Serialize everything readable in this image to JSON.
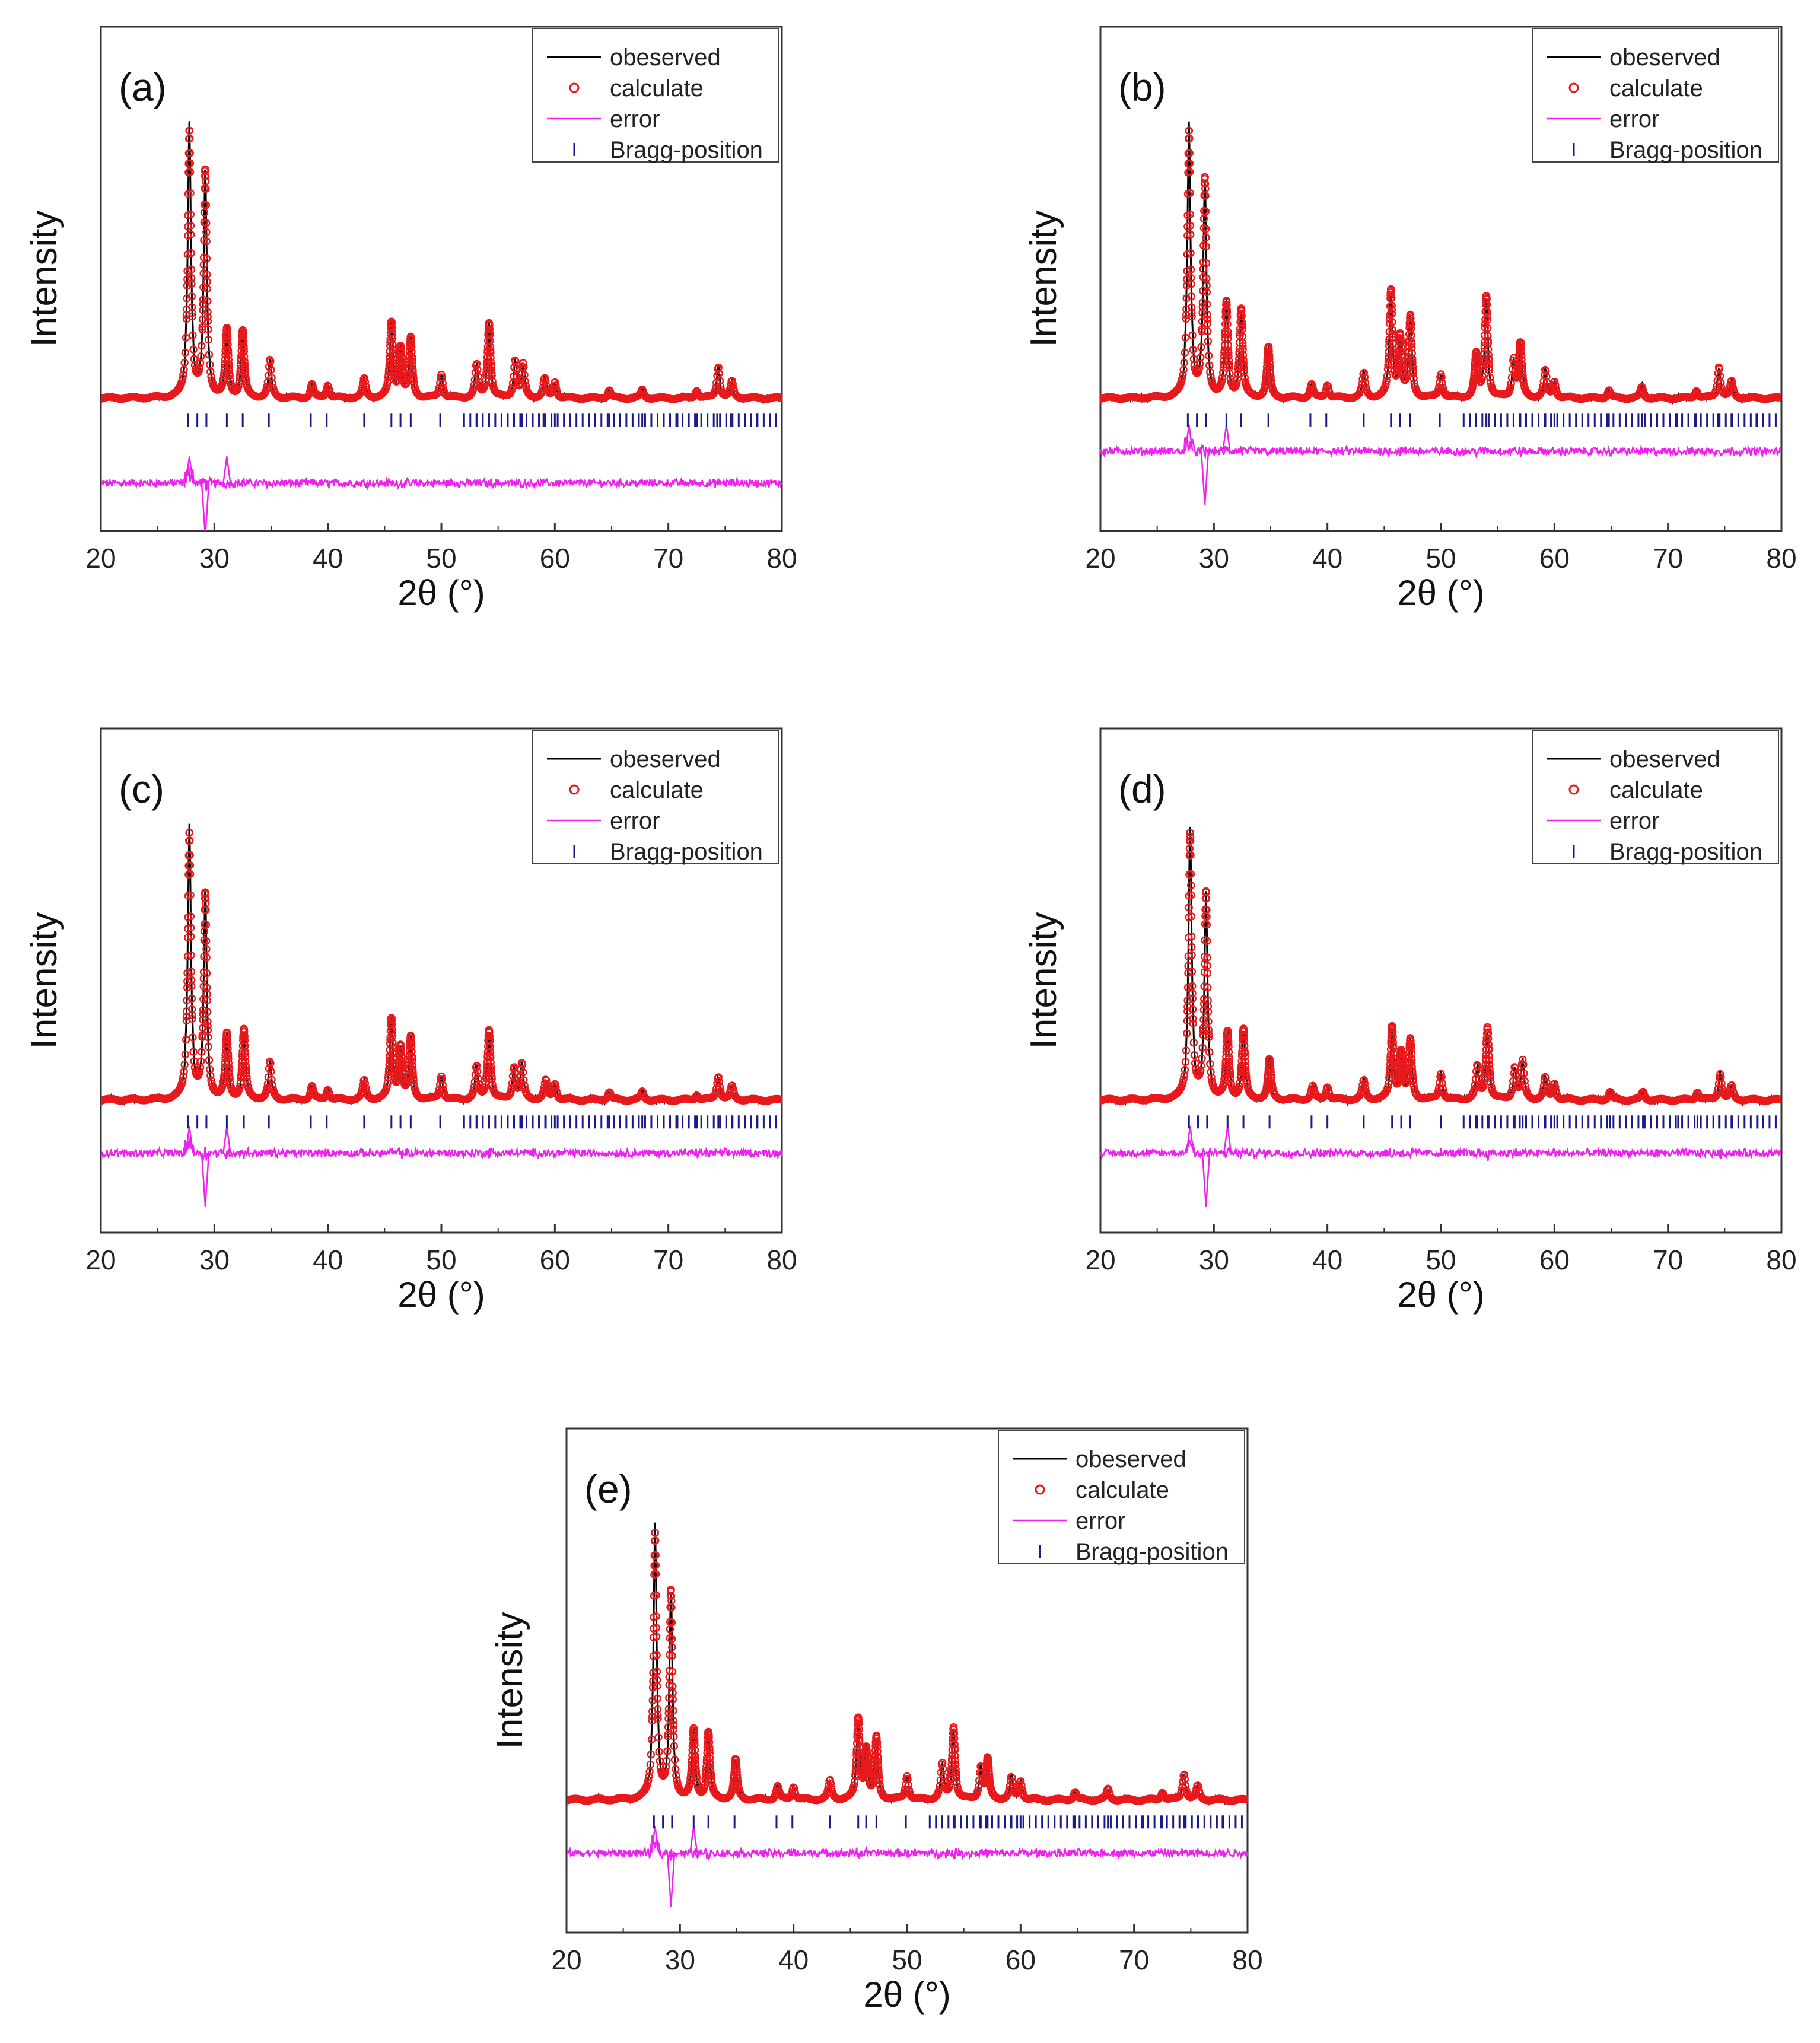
{
  "figure": {
    "x_axis_label": "2θ (°)",
    "y_axis_label": "Intensity",
    "legend": [
      "obeserved",
      "calculate",
      "error",
      "Bragg-position"
    ],
    "colors": {
      "observed": "#000000",
      "calculated": "#e8191c",
      "error": "#ee22ee",
      "bragg": "#1a1a8c"
    }
  },
  "chart_data": [
    {
      "panel_label": "(a)",
      "type": "line",
      "xlabel": "2θ (°)",
      "ylabel": "Intensity",
      "xlim": [
        20,
        80
      ],
      "xticks": [
        20,
        30,
        40,
        50,
        60,
        70,
        80
      ],
      "ylim": [
        -0.5,
        1.4
      ],
      "legend": [
        "obeserved",
        "calculate",
        "error",
        "Bragg-position"
      ],
      "baseline": 0.0,
      "error_offset": -0.32,
      "peaks": [
        [
          27.8,
          1.0
        ],
        [
          29.2,
          0.85
        ],
        [
          31.1,
          0.25
        ],
        [
          32.5,
          0.25
        ],
        [
          34.9,
          0.14
        ],
        [
          38.6,
          0.05
        ],
        [
          40.0,
          0.05
        ],
        [
          43.2,
          0.07
        ],
        [
          45.6,
          0.28
        ],
        [
          46.4,
          0.18
        ],
        [
          47.3,
          0.22
        ],
        [
          50.0,
          0.09
        ],
        [
          53.1,
          0.12
        ],
        [
          54.2,
          0.28
        ],
        [
          56.5,
          0.14
        ],
        [
          57.2,
          0.12
        ],
        [
          59.1,
          0.07
        ],
        [
          60.0,
          0.06
        ],
        [
          64.8,
          0.03
        ],
        [
          67.7,
          0.03
        ],
        [
          72.5,
          0.03
        ],
        [
          74.4,
          0.12
        ],
        [
          75.6,
          0.06
        ]
      ],
      "bragg_positions": [
        27.7,
        28.5,
        29.3,
        31.1,
        32.5,
        34.8,
        38.5,
        39.9,
        43.2,
        45.6,
        46.4,
        47.3,
        49.9,
        53.1,
        54.2,
        56.4,
        57.1,
        59.0,
        60.0,
        64.8,
        67.7,
        70.8,
        72.5,
        74.3,
        75.5,
        77.8
      ]
    },
    {
      "panel_label": "(b)",
      "type": "line",
      "xlabel": "2θ (°)",
      "ylabel": "Intensity",
      "xlim": [
        20,
        80
      ],
      "xticks": [
        20,
        30,
        40,
        50,
        60,
        70,
        80
      ],
      "ylim": [
        -0.5,
        1.4
      ],
      "legend": [
        "obeserved",
        "calculate",
        "error",
        "Bragg-position"
      ],
      "baseline": 0.0,
      "error_offset": -0.2,
      "peaks": [
        [
          27.8,
          1.0
        ],
        [
          29.2,
          0.82
        ],
        [
          31.1,
          0.35
        ],
        [
          32.4,
          0.33
        ],
        [
          34.8,
          0.19
        ],
        [
          38.6,
          0.05
        ],
        [
          40.0,
          0.05
        ],
        [
          43.2,
          0.09
        ],
        [
          45.6,
          0.4
        ],
        [
          46.4,
          0.22
        ],
        [
          47.3,
          0.3
        ],
        [
          50.0,
          0.09
        ],
        [
          53.1,
          0.16
        ],
        [
          54.0,
          0.38
        ],
        [
          56.4,
          0.14
        ],
        [
          57.0,
          0.2
        ],
        [
          59.2,
          0.1
        ],
        [
          60.0,
          0.06
        ],
        [
          64.8,
          0.03
        ],
        [
          67.7,
          0.04
        ],
        [
          72.5,
          0.03
        ],
        [
          74.5,
          0.12
        ],
        [
          75.6,
          0.06
        ]
      ],
      "bragg_positions": [
        27.7,
        28.5,
        29.3,
        31.1,
        32.4,
        34.8,
        38.5,
        39.9,
        43.2,
        45.6,
        46.4,
        47.3,
        49.9,
        53.1,
        54.0,
        56.4,
        57.0,
        59.2,
        60.0,
        64.8,
        67.7,
        70.8,
        72.5,
        74.4,
        75.6,
        77.8
      ]
    },
    {
      "panel_label": "(c)",
      "type": "line",
      "xlabel": "2θ (°)",
      "ylabel": "Intensity",
      "xlim": [
        20,
        80
      ],
      "xticks": [
        20,
        30,
        40,
        50,
        60,
        70,
        80
      ],
      "ylim": [
        -0.5,
        1.4
      ],
      "legend": [
        "obeserved",
        "calculate",
        "error",
        "Bragg-position"
      ],
      "baseline": 0.0,
      "error_offset": -0.2,
      "peaks": [
        [
          27.8,
          1.0
        ],
        [
          29.2,
          0.77
        ],
        [
          31.1,
          0.24
        ],
        [
          32.6,
          0.26
        ],
        [
          34.9,
          0.14
        ],
        [
          38.6,
          0.05
        ],
        [
          40.0,
          0.04
        ],
        [
          43.2,
          0.07
        ],
        [
          45.6,
          0.3
        ],
        [
          46.4,
          0.19
        ],
        [
          47.3,
          0.23
        ],
        [
          50.0,
          0.09
        ],
        [
          53.1,
          0.12
        ],
        [
          54.2,
          0.26
        ],
        [
          56.4,
          0.12
        ],
        [
          57.1,
          0.13
        ],
        [
          59.2,
          0.07
        ],
        [
          60.0,
          0.06
        ],
        [
          64.8,
          0.03
        ],
        [
          67.7,
          0.03
        ],
        [
          72.5,
          0.02
        ],
        [
          74.4,
          0.09
        ],
        [
          75.6,
          0.05
        ]
      ],
      "bragg_positions": [
        27.7,
        28.5,
        29.3,
        31.1,
        32.6,
        34.8,
        38.5,
        39.9,
        43.2,
        45.6,
        46.4,
        47.3,
        49.9,
        53.1,
        54.2,
        56.4,
        57.1,
        59.2,
        60.0,
        64.8,
        67.7,
        70.8,
        72.5,
        74.4,
        75.6,
        77.8
      ]
    },
    {
      "panel_label": "(d)",
      "type": "line",
      "xlabel": "2θ (°)",
      "ylabel": "Intensity",
      "xlim": [
        20,
        80
      ],
      "xticks": [
        20,
        30,
        40,
        50,
        60,
        70,
        80
      ],
      "ylim": [
        -0.5,
        1.4
      ],
      "legend": [
        "obeserved",
        "calculate",
        "error",
        "Bragg-position"
      ],
      "baseline": 0.0,
      "error_offset": -0.2,
      "peaks": [
        [
          27.9,
          1.0
        ],
        [
          29.3,
          0.77
        ],
        [
          31.2,
          0.25
        ],
        [
          32.6,
          0.26
        ],
        [
          34.9,
          0.15
        ],
        [
          38.7,
          0.05
        ],
        [
          40.0,
          0.05
        ],
        [
          43.2,
          0.07
        ],
        [
          45.7,
          0.27
        ],
        [
          46.5,
          0.17
        ],
        [
          47.3,
          0.22
        ],
        [
          50.0,
          0.1
        ],
        [
          53.2,
          0.12
        ],
        [
          54.1,
          0.27
        ],
        [
          56.5,
          0.12
        ],
        [
          57.2,
          0.14
        ],
        [
          59.2,
          0.08
        ],
        [
          60.0,
          0.06
        ],
        [
          64.9,
          0.03
        ],
        [
          67.8,
          0.03
        ],
        [
          72.6,
          0.03
        ],
        [
          74.6,
          0.1
        ],
        [
          75.6,
          0.05
        ]
      ],
      "bragg_positions": [
        27.8,
        28.6,
        29.4,
        31.2,
        32.6,
        34.9,
        38.6,
        40.0,
        43.2,
        45.7,
        46.5,
        47.3,
        50.0,
        53.2,
        54.1,
        56.5,
        57.2,
        59.2,
        60.0,
        64.9,
        67.8,
        70.9,
        72.6,
        74.5,
        75.6,
        77.9
      ]
    },
    {
      "panel_label": "(e)",
      "type": "line",
      "xlabel": "2θ (°)",
      "ylabel": "Intensity",
      "xlim": [
        20,
        80
      ],
      "xticks": [
        20,
        30,
        40,
        50,
        60,
        70,
        80
      ],
      "ylim": [
        -0.5,
        1.4
      ],
      "legend": [
        "obeserved",
        "calculate",
        "error",
        "Bragg-position"
      ],
      "baseline": 0.0,
      "error_offset": -0.2,
      "peaks": [
        [
          27.8,
          1.0
        ],
        [
          29.2,
          0.78
        ],
        [
          31.2,
          0.26
        ],
        [
          32.5,
          0.25
        ],
        [
          34.9,
          0.15
        ],
        [
          38.6,
          0.05
        ],
        [
          40.0,
          0.05
        ],
        [
          43.2,
          0.07
        ],
        [
          45.7,
          0.3
        ],
        [
          46.4,
          0.18
        ],
        [
          47.3,
          0.23
        ],
        [
          50.0,
          0.09
        ],
        [
          53.1,
          0.13
        ],
        [
          54.1,
          0.27
        ],
        [
          56.5,
          0.12
        ],
        [
          57.1,
          0.15
        ],
        [
          59.2,
          0.08
        ],
        [
          60.0,
          0.07
        ],
        [
          64.8,
          0.03
        ],
        [
          67.7,
          0.04
        ],
        [
          72.5,
          0.03
        ],
        [
          74.4,
          0.1
        ],
        [
          75.6,
          0.05
        ]
      ],
      "bragg_positions": [
        27.7,
        28.5,
        29.3,
        31.2,
        32.5,
        34.8,
        38.5,
        39.9,
        43.2,
        45.7,
        46.4,
        47.3,
        49.9,
        53.1,
        54.1,
        56.5,
        57.1,
        59.2,
        60.0,
        64.8,
        67.7,
        70.8,
        72.5,
        74.4,
        75.6,
        77.8
      ]
    }
  ]
}
